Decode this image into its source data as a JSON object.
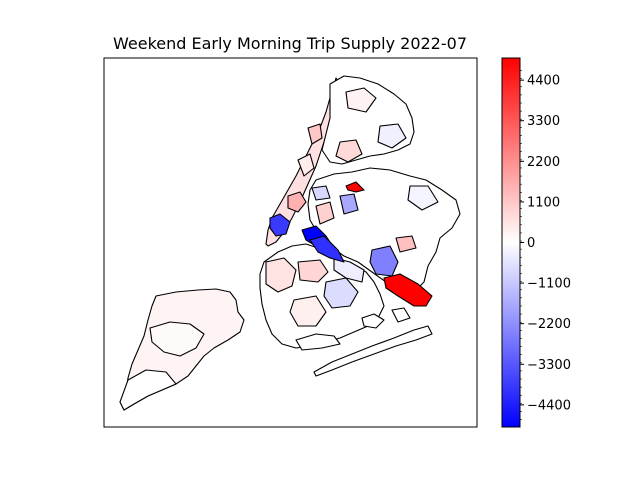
{
  "chart_data": {
    "type": "choropleth",
    "title": "Weekend Early Morning Trip Supply 2022-07",
    "xlabel": "",
    "ylabel": "",
    "colormap": "bwr",
    "color_range": [
      -5000,
      5000
    ],
    "colorbar_ticks": [
      4400,
      3300,
      2200,
      1100,
      0,
      -1100,
      -2200,
      -3300,
      -4400
    ],
    "colorbar_tick_labels": [
      "4400",
      "3300",
      "2200",
      "1100",
      "0",
      "−1100",
      "−2200",
      "−3300",
      "−4400"
    ],
    "axes_ticks_visible": false,
    "grid": false
  },
  "colors": {
    "low": "#0000ff",
    "mid": "#ffffff",
    "high": "#ff0000",
    "edge": "#000000"
  }
}
